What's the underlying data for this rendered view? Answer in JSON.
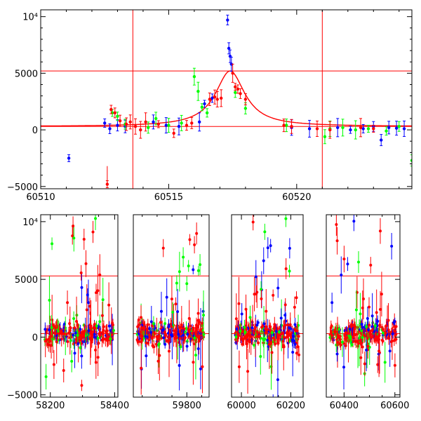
{
  "chart_data": [
    {
      "type": "scatter",
      "title": "",
      "xlabel": "",
      "ylabel": "",
      "xlim": [
        60510,
        60524.5
      ],
      "ylim": [
        -5200,
        10600
      ],
      "x_ticks": [
        60510,
        60515,
        60520
      ],
      "x_tick_labels": [
        "60510",
        "60515",
        "60520"
      ],
      "y_ticks": [
        -5000,
        0,
        5000,
        10000
      ],
      "y_tick_labels": [
        "−5000",
        "0",
        "5000",
        "10⁴"
      ],
      "vlines": [
        60513.6,
        60521.0
      ],
      "hlines": [
        300,
        5200
      ],
      "line_color": "#ff0000",
      "model_curve": {
        "x0": 60517.4,
        "peak": 5200,
        "baseline": 300,
        "width": 0.7
      },
      "colors": {
        "blue": "#0000ff",
        "green": "#00ff00",
        "red": "#ff0000"
      },
      "series": [
        {
          "color": "blue",
          "x": [
            60511.1,
            60512.5,
            60512.7,
            60513.0,
            60513.3,
            60514.4,
            60514.9,
            60515.4,
            60516.2,
            60516.4,
            60516.7,
            60517.3,
            60517.35,
            60517.4,
            60517.45,
            60519.8,
            60520.5,
            60521.6,
            60522.1,
            60522.6,
            60523.0,
            60523.3,
            60523.6,
            60523.9,
            60524.2
          ],
          "y": [
            -2500,
            600,
            100,
            400,
            300,
            700,
            400,
            300,
            700,
            2300,
            2800,
            9700,
            7200,
            6500,
            5800,
            200,
            100,
            200,
            0,
            100,
            300,
            -900,
            200,
            150,
            100
          ]
        },
        {
          "color": "green",
          "x": [
            60512.8,
            60513.0,
            60513.3,
            60514.2,
            60514.5,
            60515.0,
            60515.5,
            60516.0,
            60516.15,
            60516.3,
            60516.5,
            60517.6,
            60518.0,
            60519.6,
            60521.1,
            60521.3,
            60521.8,
            60522.3,
            60522.8,
            60523.5,
            60524.0,
            60524.5
          ],
          "y": [
            1500,
            1200,
            500,
            200,
            1000,
            400,
            600,
            4700,
            3400,
            2000,
            1500,
            3300,
            1900,
            400,
            -600,
            100,
            200,
            0,
            100,
            -100,
            300,
            -2700
          ]
        },
        {
          "color": "red",
          "x": [
            60512.6,
            60512.75,
            60512.9,
            60513.1,
            60513.35,
            60513.5,
            60513.7,
            60513.9,
            60514.1,
            60514.6,
            60515.2,
            60515.7,
            60515.9,
            60516.6,
            60516.8,
            60516.9,
            60517.05,
            60517.5,
            60517.6,
            60517.7,
            60517.8,
            60518.0,
            60519.5,
            60519.8,
            60520.8,
            60521.3,
            60522.5,
            60523.0
          ],
          "y": [
            -4800,
            1800,
            1500,
            800,
            500,
            700,
            300,
            0,
            700,
            500,
            -300,
            400,
            600,
            2700,
            2900,
            2700,
            2800,
            5000,
            3800,
            3600,
            3200,
            2700,
            400,
            300,
            100,
            0,
            200,
            100
          ]
        }
      ]
    },
    {
      "type": "scatter",
      "title": "",
      "xlabel": "",
      "ylabel": "",
      "ylim": [
        -5200,
        10600
      ],
      "y_ticks": [
        -5000,
        0,
        5000,
        10000
      ],
      "y_tick_labels": [
        "−5000",
        "0",
        "5000",
        "10⁴"
      ],
      "hlines": [
        300,
        5300
      ],
      "line_color": "#ff0000",
      "x_ticks": [
        58200,
        58400,
        59800,
        60000,
        60200,
        60400,
        60600
      ],
      "x_tick_labels": [
        "58200",
        "58400",
        "59800",
        "60000",
        "60200",
        "60400",
        "60600"
      ],
      "segments": [
        {
          "xlim": [
            58170,
            58410
          ],
          "x_ticks": [
            58200,
            58400
          ]
        },
        {
          "xlim": [
            59620,
            59875
          ],
          "x_ticks": [
            59800
          ]
        },
        {
          "xlim": [
            59960,
            60250
          ],
          "x_ticks": [
            60000,
            60200
          ]
        },
        {
          "xlim": [
            60330,
            60620
          ],
          "x_ticks": [
            60400,
            60600
          ]
        }
      ],
      "colors": {
        "blue": "#0000ff",
        "green": "#00ff00",
        "red": "#ff0000"
      }
    }
  ]
}
